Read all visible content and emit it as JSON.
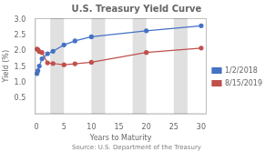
{
  "chart_data": {
    "type": "line",
    "title": "U.S. Treasury Yield Curve",
    "xlabel": "Years to Maturity",
    "ylabel": "Yield (%)",
    "annotation": "Source: U.S. Department of the Treasury",
    "x": [
      0.083,
      0.25,
      0.5,
      1,
      2,
      3,
      5,
      7,
      10,
      20,
      30
    ],
    "series": [
      {
        "name": "1/2/2018",
        "color": "#4472C4",
        "values": [
          1.29,
          1.38,
          1.53,
          1.76,
          1.92,
          2.0,
          2.2,
          2.33,
          2.46,
          2.65,
          2.81
        ]
      },
      {
        "name": "8/15/2019",
        "color": "#C0504D",
        "values": [
          2.07,
          2.05,
          1.99,
          1.96,
          1.63,
          1.61,
          1.57,
          1.6,
          1.65,
          1.96,
          2.1
        ]
      }
    ],
    "xlim": [
      -0.3,
      31
    ],
    "ylim": [
      0,
      3.05
    ],
    "xticks": [
      0,
      5,
      10,
      15,
      20,
      25,
      30
    ],
    "yticks": [
      0.5,
      {
        "value": 1.0,
        "label": "1.0"
      },
      1.5,
      {
        "value": 2.0,
        "label": "2.0"
      },
      2.5,
      {
        "value": 3.0,
        "label": "3.0"
      }
    ],
    "shaded_bands": [
      [
        2.5,
        5.0
      ],
      [
        10.0,
        12.5
      ],
      [
        17.5,
        20.0
      ],
      [
        25.0,
        27.5
      ]
    ],
    "band_color": "#E0E0E0",
    "marker": "circle",
    "legend": "right",
    "grid": false
  }
}
